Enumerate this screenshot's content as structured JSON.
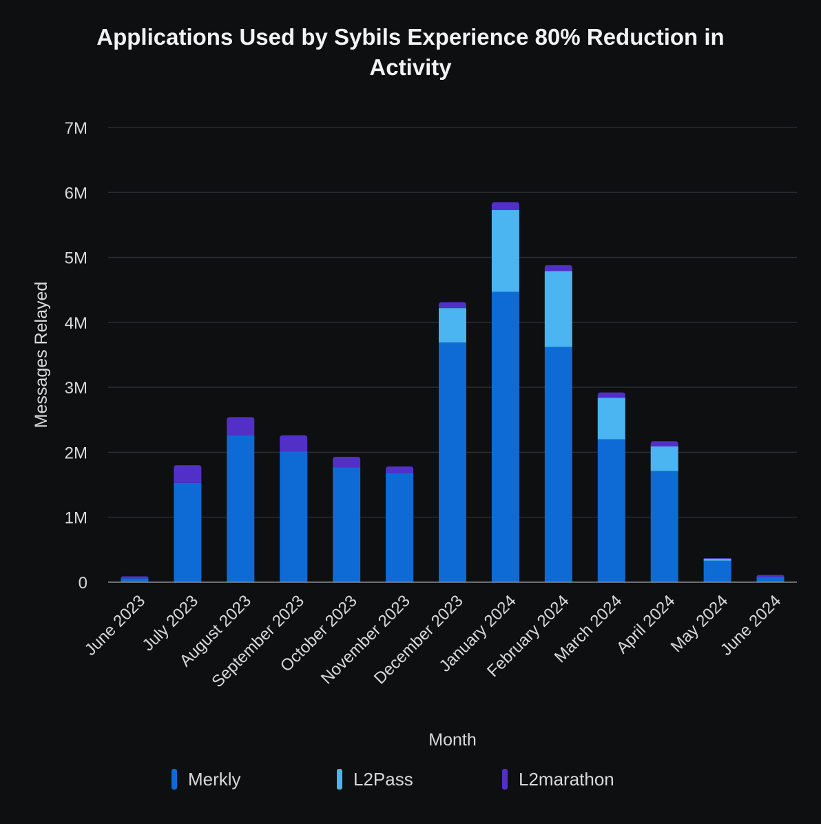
{
  "chart_data": {
    "type": "bar",
    "stacked": true,
    "title": "Applications Used by Sybils Experience 80% Reduction in Activity",
    "title_lines": [
      "Applications Used by Sybils Experience 80% Reduction in",
      "Activity"
    ],
    "xlabel": "Month",
    "ylabel": "Messages Relayed",
    "ylim": [
      0,
      7000000
    ],
    "yticks": [
      0,
      1000000,
      2000000,
      3000000,
      4000000,
      5000000,
      6000000,
      7000000
    ],
    "ytick_labels": [
      "0",
      "1M",
      "2M",
      "3M",
      "4M",
      "5M",
      "6M",
      "7M"
    ],
    "grid": true,
    "legend_position": "bottom",
    "categories": [
      "June 2023",
      "July 2023",
      "August 2023",
      "September 2023",
      "October 2023",
      "November 2023",
      "December 2023",
      "January 2024",
      "February 2024",
      "March 2024",
      "April 2024",
      "May 2024",
      "June 2024"
    ],
    "series": [
      {
        "name": "Merkly",
        "color": "#0e6bd6",
        "values": [
          60000,
          1530000,
          2260000,
          2010000,
          1770000,
          1680000,
          3690000,
          4470000,
          3620000,
          2200000,
          1710000,
          330000,
          80000
        ]
      },
      {
        "name": "L2Pass",
        "color": "#4ab5f0",
        "values": [
          0,
          0,
          0,
          0,
          0,
          0,
          530000,
          1260000,
          1170000,
          640000,
          380000,
          30000,
          0
        ]
      },
      {
        "name": "L2marathon",
        "color": "#5230c8",
        "values": [
          30000,
          270000,
          280000,
          250000,
          160000,
          100000,
          90000,
          120000,
          90000,
          80000,
          80000,
          10000,
          30000
        ]
      }
    ]
  }
}
